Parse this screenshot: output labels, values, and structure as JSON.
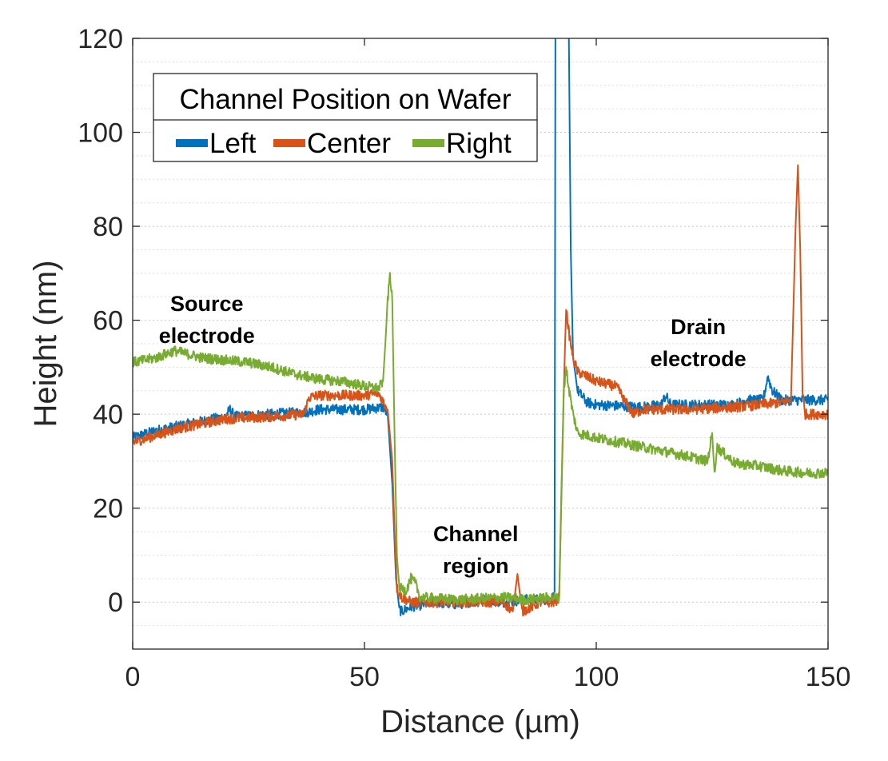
{
  "chart_data": {
    "type": "line",
    "title": "",
    "xlabel": "Distance (µm)",
    "ylabel": "Height (nm)",
    "xlim": [
      0,
      150
    ],
    "ylim": [
      -10,
      120
    ],
    "xticks": [
      0,
      50,
      100,
      150
    ],
    "yticks": [
      0,
      20,
      40,
      60,
      80,
      100,
      120
    ],
    "grid": "horizontal-dotted",
    "legend": {
      "title": "Channel Position on Wafer",
      "placement": "top-left",
      "entries": [
        "Left",
        "Center",
        "Right"
      ]
    },
    "annotations": [
      {
        "lines": [
          "Source",
          "electrode"
        ],
        "x": 16,
        "y": 62
      },
      {
        "lines": [
          "Channel",
          "region"
        ],
        "x": 74,
        "y": 13
      },
      {
        "lines": [
          "Drain",
          "electrode"
        ],
        "x": 122,
        "y": 57
      }
    ],
    "series": [
      {
        "name": "Left",
        "color": "#0072BD",
        "points": [
          [
            0,
            35
          ],
          [
            5,
            36.5
          ],
          [
            10,
            37.5
          ],
          [
            15,
            38.5
          ],
          [
            20,
            39.5
          ],
          [
            21,
            41
          ],
          [
            22,
            39.5
          ],
          [
            30,
            40
          ],
          [
            38,
            40.5
          ],
          [
            40,
            41
          ],
          [
            50,
            41
          ],
          [
            54,
            41.5
          ],
          [
            55,
            40
          ],
          [
            56,
            25
          ],
          [
            56.8,
            5
          ],
          [
            57.5,
            -1.5
          ],
          [
            58,
            -2
          ],
          [
            60,
            -1
          ],
          [
            65,
            0
          ],
          [
            70,
            -0.5
          ],
          [
            75,
            0.5
          ],
          [
            80,
            0
          ],
          [
            85,
            0.5
          ],
          [
            90,
            0.5
          ],
          [
            91,
            2
          ],
          [
            91.2,
            130
          ],
          [
            94,
            130
          ],
          [
            94.5,
            75
          ],
          [
            95,
            52
          ],
          [
            96,
            45
          ],
          [
            98,
            42.5
          ],
          [
            100,
            42
          ],
          [
            110,
            41.5
          ],
          [
            114,
            42
          ],
          [
            115,
            44
          ],
          [
            116,
            42
          ],
          [
            120,
            42
          ],
          [
            130,
            42
          ],
          [
            132,
            43
          ],
          [
            136,
            43
          ],
          [
            137,
            48
          ],
          [
            138,
            45
          ],
          [
            140,
            43
          ],
          [
            150,
            43
          ]
        ]
      },
      {
        "name": "Center",
        "color": "#D95319",
        "points": [
          [
            0,
            34
          ],
          [
            5,
            35.5
          ],
          [
            10,
            37
          ],
          [
            15,
            38
          ],
          [
            20,
            39
          ],
          [
            30,
            39.5
          ],
          [
            37,
            40
          ],
          [
            38,
            43.5
          ],
          [
            40,
            44
          ],
          [
            50,
            44
          ],
          [
            53,
            44.5
          ],
          [
            55,
            41
          ],
          [
            56,
            30
          ],
          [
            56.5,
            15
          ],
          [
            57,
            3
          ],
          [
            58,
            1
          ],
          [
            60,
            0
          ],
          [
            65,
            0
          ],
          [
            70,
            0
          ],
          [
            75,
            0
          ],
          [
            80,
            0
          ],
          [
            82,
            -2
          ],
          [
            83,
            6
          ],
          [
            84,
            -2
          ],
          [
            88,
            0
          ],
          [
            91,
            0
          ],
          [
            92,
            1
          ],
          [
            93,
            45
          ],
          [
            93.5,
            63
          ],
          [
            94,
            58
          ],
          [
            95,
            52
          ],
          [
            96,
            49
          ],
          [
            100,
            47
          ],
          [
            104,
            46
          ],
          [
            105,
            45
          ],
          [
            106,
            43
          ],
          [
            108,
            40
          ],
          [
            110,
            41
          ],
          [
            120,
            41
          ],
          [
            130,
            41.5
          ],
          [
            135,
            42
          ],
          [
            140,
            42.5
          ],
          [
            142,
            43
          ],
          [
            143,
            80
          ],
          [
            143.5,
            93
          ],
          [
            144,
            75
          ],
          [
            144.5,
            45
          ],
          [
            145,
            40
          ],
          [
            150,
            40
          ]
        ]
      },
      {
        "name": "Right",
        "color": "#77AC30",
        "points": [
          [
            0,
            51
          ],
          [
            5,
            52
          ],
          [
            9,
            53.5
          ],
          [
            15,
            52
          ],
          [
            20,
            51.5
          ],
          [
            25,
            51
          ],
          [
            30,
            50
          ],
          [
            35,
            48.5
          ],
          [
            40,
            47.5
          ],
          [
            45,
            47
          ],
          [
            50,
            46
          ],
          [
            53,
            45.5
          ],
          [
            54,
            47
          ],
          [
            54.5,
            55
          ],
          [
            55,
            64
          ],
          [
            55.5,
            70
          ],
          [
            56,
            64
          ],
          [
            56.5,
            35
          ],
          [
            57,
            10
          ],
          [
            57.5,
            3
          ],
          [
            59,
            2.5
          ],
          [
            60,
            5
          ],
          [
            61,
            4
          ],
          [
            62,
            1
          ],
          [
            70,
            0.5
          ],
          [
            80,
            1
          ],
          [
            85,
            0.5
          ],
          [
            90,
            1
          ],
          [
            92,
            1
          ],
          [
            92.5,
            25
          ],
          [
            93,
            45
          ],
          [
            93.5,
            50
          ],
          [
            94,
            46
          ],
          [
            95,
            40
          ],
          [
            96,
            36
          ],
          [
            100,
            35
          ],
          [
            105,
            34
          ],
          [
            110,
            33
          ],
          [
            115,
            32
          ],
          [
            120,
            31
          ],
          [
            124,
            30
          ],
          [
            125,
            36
          ],
          [
            125.5,
            27
          ],
          [
            126,
            33
          ],
          [
            130,
            29.5
          ],
          [
            135,
            29
          ],
          [
            140,
            28
          ],
          [
            145,
            27.5
          ],
          [
            150,
            27.5
          ]
        ]
      }
    ]
  }
}
